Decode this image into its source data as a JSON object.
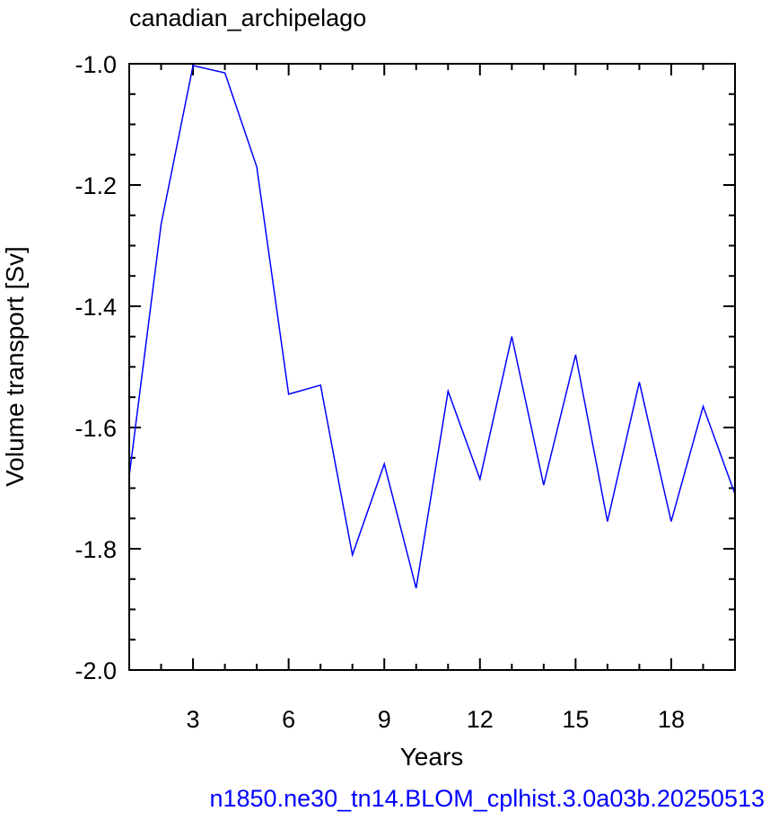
{
  "chart_data": {
    "type": "line",
    "title": "canadian_archipelago",
    "xlabel": "Years",
    "ylabel": "Volume transport [Sv]",
    "footer": "n1850.ne30_tn14.BLOM_cplhist.3.0a03b.20250513",
    "xlim": [
      1,
      20
    ],
    "ylim": [
      -2.0,
      -1.0
    ],
    "x_ticks": [
      3,
      6,
      9,
      12,
      15,
      18
    ],
    "x_tick_labels": [
      "3",
      "6",
      "9",
      "12",
      "15",
      "18"
    ],
    "y_ticks": [
      -1.0,
      -1.2,
      -1.4,
      -1.6,
      -1.8,
      -2.0
    ],
    "y_tick_labels": [
      "-1.0",
      "-1.2",
      "-1.4",
      "-1.6",
      "-1.8",
      "-2.0"
    ],
    "grid": false,
    "series": [
      {
        "color": "#0000ff",
        "x": [
          1,
          2,
          3,
          4,
          5,
          6,
          7,
          8,
          9,
          10,
          11,
          12,
          13,
          14,
          15,
          16,
          17,
          18,
          19,
          20
        ],
        "values": [
          -1.68,
          -1.265,
          -1.003,
          -1.015,
          -1.17,
          -1.545,
          -1.53,
          -1.81,
          -1.66,
          -1.865,
          -1.54,
          -1.685,
          -1.45,
          -1.695,
          -1.48,
          -1.755,
          -1.525,
          -1.755,
          -1.565,
          -1.71
        ]
      }
    ]
  },
  "colors": {
    "line": "#0000ff",
    "footer": "#0000ff",
    "axis": "#000000"
  }
}
